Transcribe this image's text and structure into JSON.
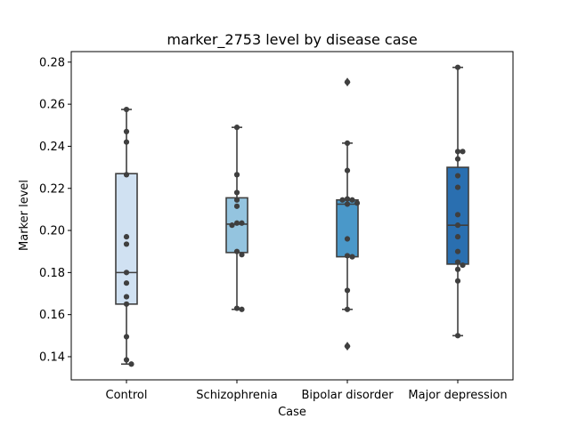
{
  "chart_data": {
    "type": "box",
    "title": "marker_2753 level by disease case",
    "xlabel": "Case",
    "ylabel": "Marker level",
    "ylim": [
      0.129,
      0.285
    ],
    "yticks": [
      0.14,
      0.16,
      0.18,
      0.2,
      0.22,
      0.24,
      0.26,
      0.28
    ],
    "ytick_labels": [
      "0.14",
      "0.16",
      "0.18",
      "0.20",
      "0.22",
      "0.24",
      "0.26",
      "0.28"
    ],
    "categories": [
      "Control",
      "Schizophrenia",
      "Bipolar disorder",
      "Major depression"
    ],
    "box_colors": [
      "#d0e1f2",
      "#94c4df",
      "#4a98c9",
      "#2a6fb0"
    ],
    "line_color": "#3f3f3f",
    "grid": false,
    "boxes": [
      {
        "category": "Control",
        "q1": 0.165,
        "median": 0.18,
        "q3": 0.227,
        "whisker_low": 0.1365,
        "whisker_high": 0.2575,
        "outliers": []
      },
      {
        "category": "Schizophrenia",
        "q1": 0.1895,
        "median": 0.203,
        "q3": 0.2155,
        "whisker_low": 0.1625,
        "whisker_high": 0.249,
        "outliers": []
      },
      {
        "category": "Bipolar disorder",
        "q1": 0.1875,
        "median": 0.2125,
        "q3": 0.2145,
        "whisker_low": 0.1625,
        "whisker_high": 0.2415,
        "outliers": [
          0.2705,
          0.145
        ]
      },
      {
        "category": "Major depression",
        "q1": 0.184,
        "median": 0.2025,
        "q3": 0.23,
        "whisker_low": 0.15,
        "whisker_high": 0.2775,
        "outliers": []
      }
    ],
    "points": [
      [
        0.2575,
        0.247,
        0.242,
        0.2265,
        0.197,
        0.1935,
        0.18,
        0.175,
        0.1685,
        0.165,
        0.1495,
        0.1385,
        0.1365
      ],
      [
        0.249,
        0.2265,
        0.218,
        0.2145,
        0.2115,
        0.2035,
        0.2035,
        0.2025,
        0.19,
        0.1885,
        0.163,
        0.1625
      ],
      [
        0.2705,
        0.2415,
        0.2285,
        0.215,
        0.2145,
        0.2145,
        0.213,
        0.2125,
        0.196,
        0.188,
        0.1875,
        0.1715,
        0.1625,
        0.145
      ],
      [
        0.2775,
        0.2375,
        0.2375,
        0.234,
        0.226,
        0.2205,
        0.2075,
        0.2025,
        0.197,
        0.19,
        0.185,
        0.1835,
        0.1815,
        0.176,
        0.15
      ]
    ]
  }
}
